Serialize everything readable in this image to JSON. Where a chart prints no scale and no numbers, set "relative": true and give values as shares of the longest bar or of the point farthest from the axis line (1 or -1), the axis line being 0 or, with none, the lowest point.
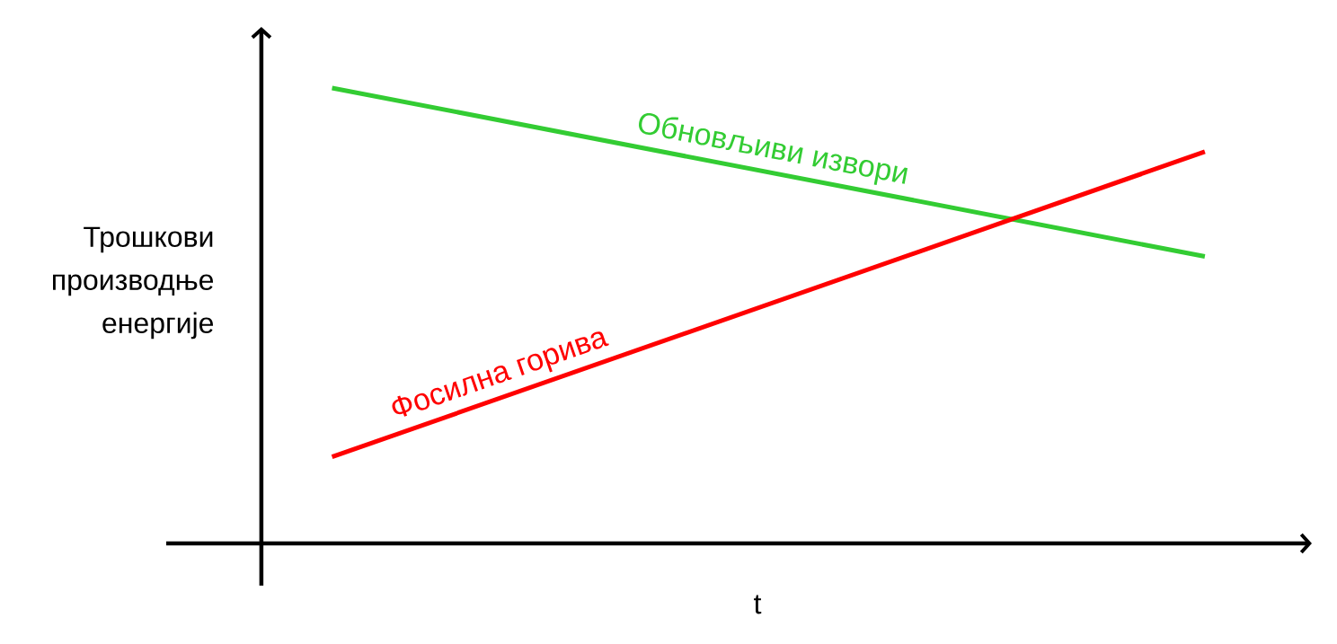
{
  "chart_data": {
    "type": "line",
    "relative": true,
    "marker": "none",
    "line_style": "solid",
    "xlabel": "t",
    "ylabel": "Трошкови производње енергије",
    "categories": [
      null,
      null
    ],
    "series": [
      {
        "name": "Обновљиви извори",
        "color": "#33cc33",
        "values": [
          1,
          0.63
        ]
      },
      {
        "name": "Фосилна горива",
        "color": "#ff0000",
        "values": [
          0.19,
          0.86
        ]
      }
    ]
  }
}
